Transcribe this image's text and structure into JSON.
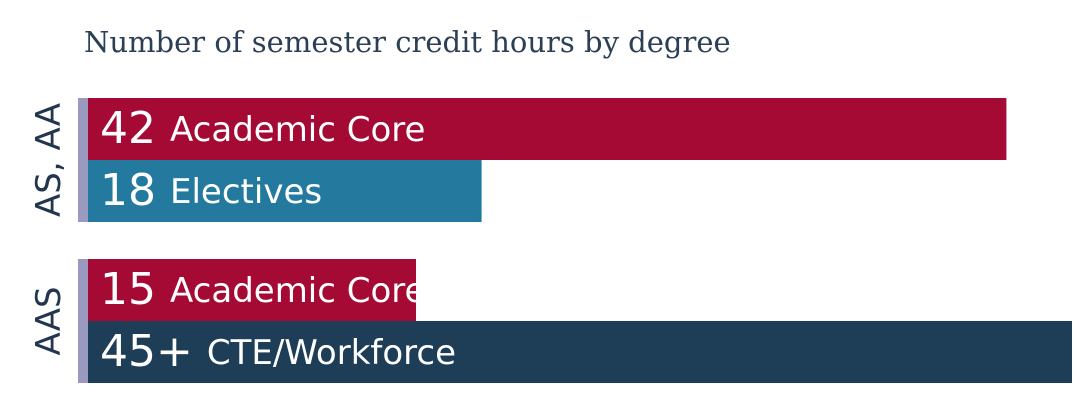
{
  "chart_data": {
    "type": "bar",
    "orientation": "horizontal",
    "title": "Number of semester credit hours by degree",
    "groups": [
      {
        "name": "AS, AA",
        "names": [
          "Academic Core",
          "Electives"
        ],
        "values": [
          42,
          18
        ],
        "colors": [
          "#a50a35",
          "#237a9e"
        ]
      },
      {
        "name": "AAS",
        "names": [
          "Academic Core",
          "CTE/Workforce"
        ],
        "values": [
          15,
          45
        ],
        "value_labels": [
          "15",
          "45+"
        ],
        "colors": [
          "#a50a35",
          "#1e3d56"
        ]
      }
    ]
  }
}
